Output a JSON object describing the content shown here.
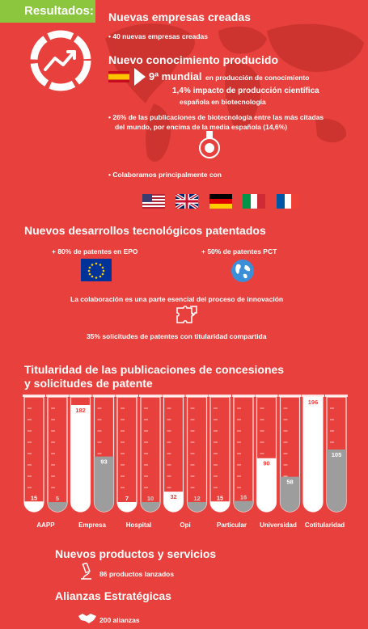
{
  "header": {
    "tag": "Resultados:"
  },
  "empresas": {
    "title": "Nuevas empresas creadas",
    "line": "40 nuevas empresas creadas"
  },
  "conocimiento": {
    "title": "Nuevo conocimiento producido",
    "rank_big": "9ª mundial",
    "rank_small": "en producción de conocimiento",
    "impact_big": "1,4% impacto de producción científica",
    "impact_small": "española en biotecnología",
    "pct_line1": "26% de las publicaciones de biotecnología entre las más citadas",
    "pct_line2": "del mundo, por encima de la media española (14,6%)",
    "collab": "Colaboramos principalmente con"
  },
  "patentes": {
    "title": "Nuevos desarrollos tecnológicos patentados",
    "epo": "+ 80% de patentes en EPO",
    "pct": "+ 50% de patentes PCT",
    "collab_line": "La colaboración es una parte esencial del proceso de innovación",
    "shared_line": "35% solicitudes de patentes con titularidad compartida"
  },
  "chart_data": {
    "type": "bar",
    "title": "Titularidad de las publicaciones de concesiones y solicitudes de patente",
    "title_line1": "Titularidad de las publicaciones de concesiones",
    "title_line2": "y solicitudes de patente",
    "categories": [
      "AAPP",
      "Empresa",
      "Hospital",
      "Opi",
      "Particular",
      "Universidad",
      "Cotitularidad"
    ],
    "series": [
      {
        "values": [
          15,
          182,
          7,
          32,
          15,
          90,
          196
        ]
      },
      {
        "values": [
          5,
          93,
          10,
          12,
          16,
          58,
          105
        ]
      }
    ],
    "ylim": [
      0,
      196
    ],
    "colors": [
      "#ffffff",
      "#9d9d9d"
    ]
  },
  "productos": {
    "title": "Nuevos productos  y servicios",
    "line": "86 productos lanzados"
  },
  "alianzas": {
    "title": "Alianzas Estratégicas",
    "line": "200 alianzas"
  },
  "colors": {
    "background": "#e8403c",
    "tag": "#8cc63f"
  }
}
